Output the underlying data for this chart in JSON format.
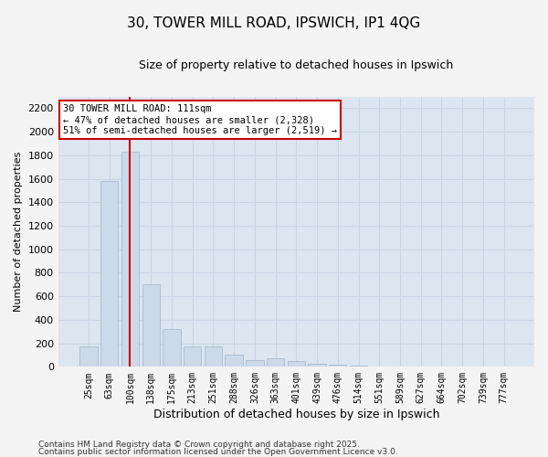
{
  "title": "30, TOWER MILL ROAD, IPSWICH, IP1 4QG",
  "subtitle": "Size of property relative to detached houses in Ipswich",
  "xlabel": "Distribution of detached houses by size in Ipswich",
  "ylabel": "Number of detached properties",
  "categories": [
    "25sqm",
    "63sqm",
    "100sqm",
    "138sqm",
    "175sqm",
    "213sqm",
    "251sqm",
    "288sqm",
    "326sqm",
    "363sqm",
    "401sqm",
    "439sqm",
    "476sqm",
    "514sqm",
    "551sqm",
    "589sqm",
    "627sqm",
    "664sqm",
    "702sqm",
    "739sqm",
    "777sqm"
  ],
  "values": [
    175,
    1580,
    1830,
    700,
    320,
    175,
    175,
    100,
    55,
    75,
    50,
    25,
    20,
    10,
    5,
    4,
    3,
    2,
    1,
    1,
    1
  ],
  "bar_color": "#ccd9e8",
  "bar_edge_color": "#a0b4cc",
  "vline_x_index": 2,
  "vline_color": "#cc0000",
  "annotation_text": "30 TOWER MILL ROAD: 111sqm\n← 47% of detached houses are smaller (2,328)\n51% of semi-detached houses are larger (2,519) →",
  "annotation_box_color": "#ffffff",
  "annotation_box_edge": "#cc0000",
  "ylim": [
    0,
    2300
  ],
  "yticks": [
    0,
    200,
    400,
    600,
    800,
    1000,
    1200,
    1400,
    1600,
    1800,
    2000,
    2200
  ],
  "grid_color": "#c8d4e4",
  "bg_color": "#dce6f0",
  "fig_bg_color": "#f4f4f4",
  "footer1": "Contains HM Land Registry data © Crown copyright and database right 2025.",
  "footer2": "Contains public sector information licensed under the Open Government Licence v3.0."
}
